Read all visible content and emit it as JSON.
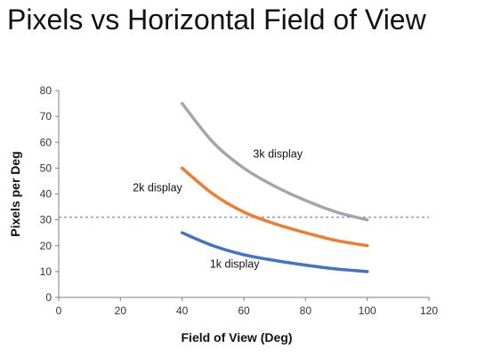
{
  "chart_data": {
    "type": "line",
    "title": "Pixels vs Horizontal Field of View",
    "xlabel": "Field of View (Deg)",
    "ylabel": "Pixels per Deg",
    "xlim": [
      0,
      120
    ],
    "ylim": [
      0,
      80
    ],
    "xticks": [
      0,
      20,
      40,
      60,
      80,
      100,
      120
    ],
    "yticks": [
      0,
      10,
      20,
      30,
      40,
      50,
      60,
      70,
      80
    ],
    "grid": false,
    "legend": "none",
    "series": [
      {
        "name": "3k display",
        "color": "#a6a6a6",
        "x": [
          40,
          50,
          60,
          70,
          80,
          90,
          100
        ],
        "y": [
          75,
          60,
          50,
          43,
          37.5,
          33,
          30
        ]
      },
      {
        "name": "2k display",
        "color": "#ed7d31",
        "x": [
          40,
          50,
          60,
          70,
          80,
          90,
          100
        ],
        "y": [
          50,
          40,
          33,
          28.5,
          25,
          22,
          20
        ]
      },
      {
        "name": "1k display",
        "color": "#4472c4",
        "x": [
          40,
          50,
          60,
          70,
          80,
          90,
          100
        ],
        "y": [
          25,
          20,
          16.5,
          14.3,
          12.5,
          11,
          10
        ]
      }
    ],
    "reference_line": {
      "y": 31,
      "color": "#4472c4",
      "style": "dashed"
    }
  }
}
